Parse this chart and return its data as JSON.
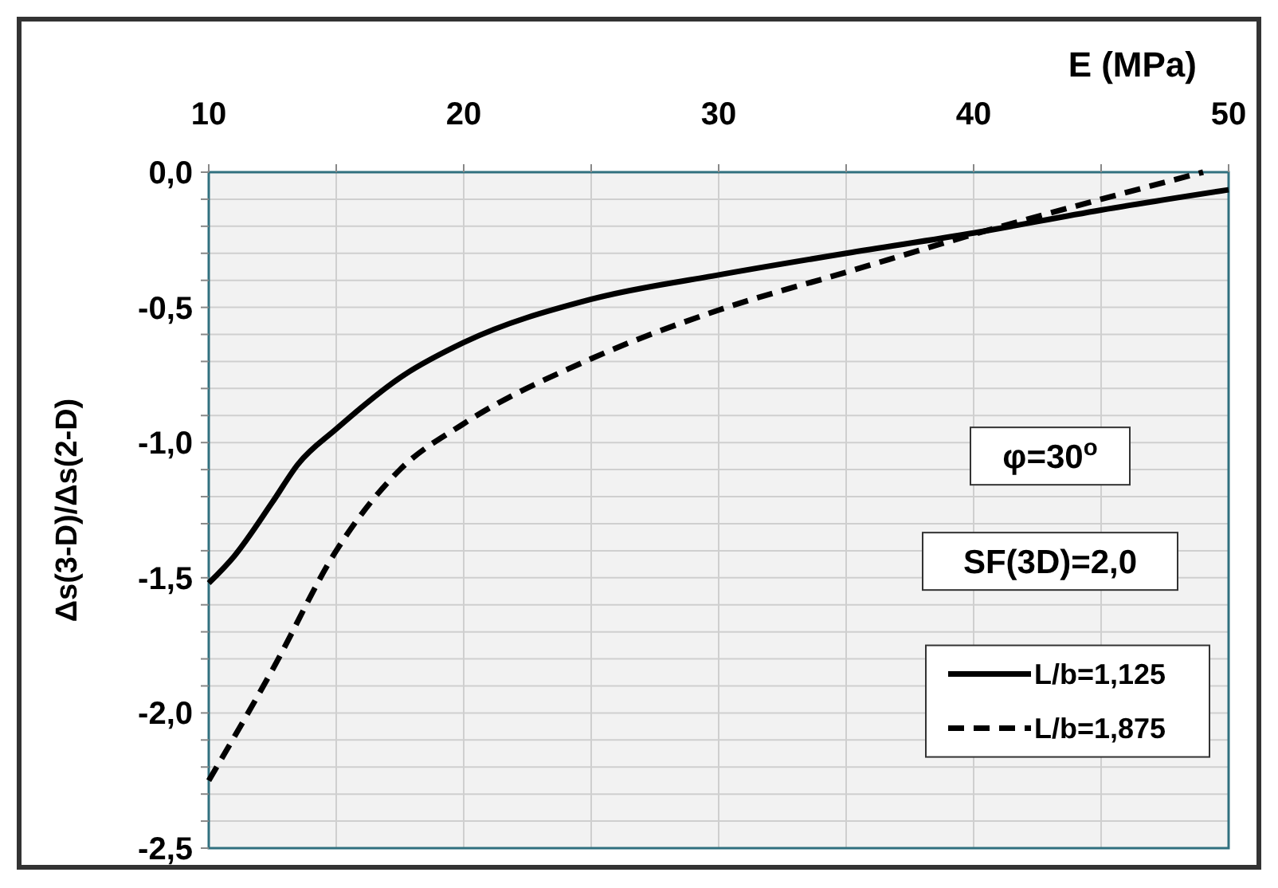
{
  "chart_data": {
    "type": "line",
    "xlabel": "E (MPa)",
    "ylabel": "Δs(3-D)/Δs(2-D)",
    "xlim": [
      10,
      50
    ],
    "ylim": [
      -2.5,
      0
    ],
    "xticks": [
      10,
      {
        "value": 15,
        "label": null
      },
      20,
      {
        "value": 25,
        "label": null
      },
      30,
      {
        "value": 35,
        "label": null
      },
      40,
      {
        "value": 45,
        "label": null
      },
      50
    ],
    "yticks": [
      {
        "value": 0,
        "label": "0,0"
      },
      {
        "value": -0.1,
        "label": null
      },
      {
        "value": -0.2,
        "label": null
      },
      {
        "value": -0.3,
        "label": null
      },
      {
        "value": -0.4,
        "label": null
      },
      {
        "value": -0.5,
        "label": "-0,5"
      },
      {
        "value": -0.6,
        "label": null
      },
      {
        "value": -0.7,
        "label": null
      },
      {
        "value": -0.8,
        "label": null
      },
      {
        "value": -0.9,
        "label": null
      },
      {
        "value": -1,
        "label": "-1,0"
      },
      {
        "value": -1.1,
        "label": null
      },
      {
        "value": -1.2,
        "label": null
      },
      {
        "value": -1.3,
        "label": null
      },
      {
        "value": -1.4,
        "label": null
      },
      {
        "value": -1.5,
        "label": "-1,5"
      },
      {
        "value": -1.6,
        "label": null
      },
      {
        "value": -1.7,
        "label": null
      },
      {
        "value": -1.8,
        "label": null
      },
      {
        "value": -1.9,
        "label": null
      },
      {
        "value": -2,
        "label": "-2,0"
      },
      {
        "value": -2.1,
        "label": null
      },
      {
        "value": -2.2,
        "label": null
      },
      {
        "value": -2.3,
        "label": null
      },
      {
        "value": -2.4,
        "label": null
      },
      {
        "value": -2.5,
        "label": "-2,5"
      }
    ],
    "grid": true,
    "legend": "right",
    "annotations": [
      "φ=30$^{o}$",
      "SF(3D)=2,0"
    ],
    "series": [
      {
        "name": "L/b=1,125",
        "color": "#000000",
        "line_style": "solid",
        "x": [
          10,
          11,
          12.5,
          13.5,
          15,
          17.5,
          20,
          25,
          30,
          35,
          40,
          45,
          50
        ],
        "values": [
          -1.52,
          -1.42,
          -1.22,
          -1.08,
          -0.95,
          -0.76,
          -0.63,
          -0.47,
          -0.38,
          -0.3,
          -0.225,
          -0.14,
          -0.065
        ]
      },
      {
        "name": "L/b=1,875",
        "color": "#000000",
        "line_style": "dashed",
        "x": [
          10,
          12.5,
          15,
          17.5,
          20,
          25,
          30,
          35,
          40,
          45,
          49
        ],
        "values": [
          -2.25,
          -1.84,
          -1.4,
          -1.1,
          -0.93,
          -0.69,
          -0.51,
          -0.37,
          -0.23,
          -0.1,
          0
        ]
      }
    ]
  }
}
